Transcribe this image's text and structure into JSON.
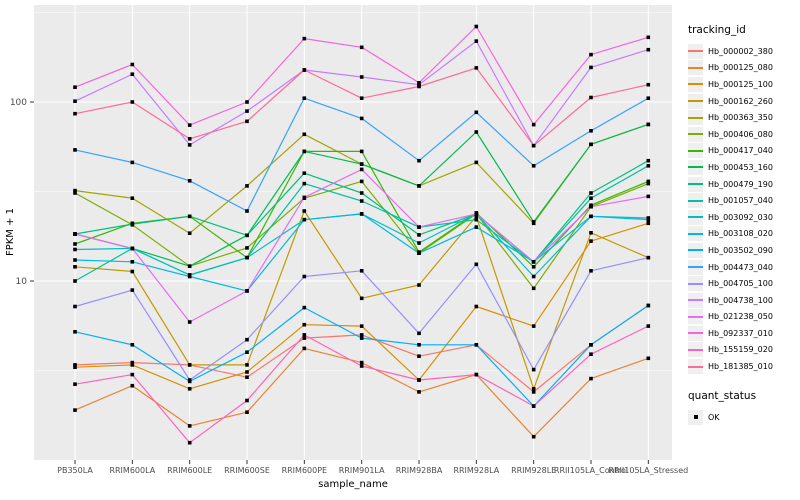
{
  "chart_data": {
    "type": "line",
    "title": "",
    "xlabel": "sample_name",
    "ylabel": "FPKM + 1",
    "y_scale": "log10",
    "ylim": [
      1.0,
      348
    ],
    "y_ticks": [
      100,
      10
    ],
    "y_minor_ticks": [
      316.2,
      31.62,
      3.162
    ],
    "grid": true,
    "legend_position": "right",
    "legend_title": "tracking_id",
    "point_marker": "black-square",
    "quant_status": {
      "title": "quant_status",
      "items": [
        {
          "label": "OK",
          "marker": "black-square"
        }
      ]
    },
    "colors": {
      "panel_bg": "#EBEBEB",
      "grid": "#FFFFFF",
      "tick": "#333333",
      "tick_label": "#4D4D4D",
      "axis_title": "#000000",
      "point": "#000000",
      "legend_key_bg": "#EFEFEF"
    },
    "categories": [
      "PB350LA",
      "RRIM600LA",
      "RRIM600LE",
      "RRIM600SE",
      "RRIM600PE",
      "RRIM901LA",
      "RRIM928BA",
      "RRIM928LA",
      "RRIM928LE",
      "RRII105LA_Control",
      "RRII105LA_Stressed"
    ],
    "series": [
      {
        "name": "Hb_000002_380",
        "color": "#F8766D",
        "values": [
          3.4,
          3.5,
          3.4,
          2.9,
          4.8,
          5.0,
          3.8,
          4.4,
          2.4,
          4.4,
          7.3
        ]
      },
      {
        "name": "Hb_000125_080",
        "color": "#EA8331",
        "values": [
          1.9,
          2.6,
          1.55,
          1.85,
          4.2,
          3.5,
          2.4,
          3.0,
          1.35,
          2.85,
          3.7
        ]
      },
      {
        "name": "Hb_000125_100",
        "color": "#D89000",
        "values": [
          3.3,
          3.4,
          2.5,
          3.1,
          5.7,
          5.6,
          2.8,
          7.2,
          5.6,
          16.7,
          21
        ]
      },
      {
        "name": "Hb_000162_260",
        "color": "#C09B00",
        "values": [
          12.0,
          11.3,
          3.4,
          3.4,
          24.6,
          8.0,
          9.5,
          23.0,
          2.5,
          18.6,
          13.5
        ]
      },
      {
        "name": "Hb_000363_350",
        "color": "#A3A500",
        "values": [
          32,
          29,
          18.5,
          34,
          66,
          45,
          34,
          46,
          21,
          58,
          75
        ]
      },
      {
        "name": "Hb_000406_080",
        "color": "#7CAE00",
        "values": [
          31,
          20.6,
          12.1,
          15.3,
          29,
          36,
          14.3,
          23.7,
          9.1,
          26,
          35
        ]
      },
      {
        "name": "Hb_000417_040",
        "color": "#39B600",
        "values": [
          16.1,
          21,
          23,
          13.5,
          53,
          53,
          14.5,
          24,
          12,
          26.5,
          36
        ]
      },
      {
        "name": "Hb_000453_160",
        "color": "#00BB4E",
        "values": [
          18.3,
          15.2,
          12.1,
          18,
          53,
          45,
          34,
          68,
          21.4,
          58,
          75
        ]
      },
      {
        "name": "Hb_000479_190",
        "color": "#00BF7D",
        "values": [
          18.3,
          20.8,
          23,
          18,
          40,
          31,
          18.1,
          23.7,
          12.8,
          31,
          47
        ]
      },
      {
        "name": "Hb_001057_040",
        "color": "#00C1A3",
        "values": [
          10,
          15.2,
          10.8,
          13.5,
          35,
          28,
          20,
          22,
          12.8,
          29,
          44
        ]
      },
      {
        "name": "Hb_003092_030",
        "color": "#00BFC4",
        "values": [
          15.0,
          15.2,
          10.8,
          13.5,
          22,
          23.7,
          16.3,
          23.7,
          10.6,
          23,
          22.5
        ]
      },
      {
        "name": "Hb_003108_020",
        "color": "#00BAE0",
        "values": [
          13.1,
          12.8,
          10.6,
          8.8,
          22,
          23.7,
          14.3,
          20,
          12.8,
          23,
          22
        ]
      },
      {
        "name": "Hb_003502_090",
        "color": "#00B0F6",
        "values": [
          5.2,
          4.4,
          2.75,
          4.0,
          7.1,
          4.8,
          4.4,
          4.4,
          2.0,
          4.4,
          7.3
        ]
      },
      {
        "name": "Hb_004473_040",
        "color": "#35A2FF",
        "values": [
          54,
          46,
          36.3,
          24.6,
          105,
          81,
          47,
          87.6,
          44,
          69,
          105
        ]
      },
      {
        "name": "Hb_004705_100",
        "color": "#9590FF",
        "values": [
          7.2,
          8.9,
          2.8,
          4.7,
          10.6,
          11.4,
          5.1,
          12.4,
          3.2,
          11.4,
          13.5
        ]
      },
      {
        "name": "Hb_004738_100",
        "color": "#C77CFF",
        "values": [
          101,
          143,
          57.6,
          89,
          151,
          138,
          125,
          219,
          57,
          156,
          196
        ]
      },
      {
        "name": "Hb_021238_050",
        "color": "#E76BF3",
        "values": [
          18.3,
          15.2,
          5.9,
          8.8,
          29.3,
          42,
          20,
          23.7,
          12.8,
          26,
          29.7
        ]
      },
      {
        "name": "Hb_092337_010",
        "color": "#FA62DB",
        "values": [
          121,
          162,
          74.3,
          100,
          226,
          202,
          128,
          264,
          74.8,
          184,
          230
        ]
      },
      {
        "name": "Hb_155159_020",
        "color": "#FF62BC",
        "values": [
          2.65,
          3.0,
          1.25,
          2.15,
          5.0,
          3.35,
          2.8,
          3.0,
          2.0,
          3.9,
          5.6
        ]
      },
      {
        "name": "Hb_181385_010",
        "color": "#FF6A98",
        "values": [
          86,
          100,
          62.3,
          78,
          151,
          105,
          122,
          155,
          57,
          106,
          125
        ]
      }
    ]
  }
}
